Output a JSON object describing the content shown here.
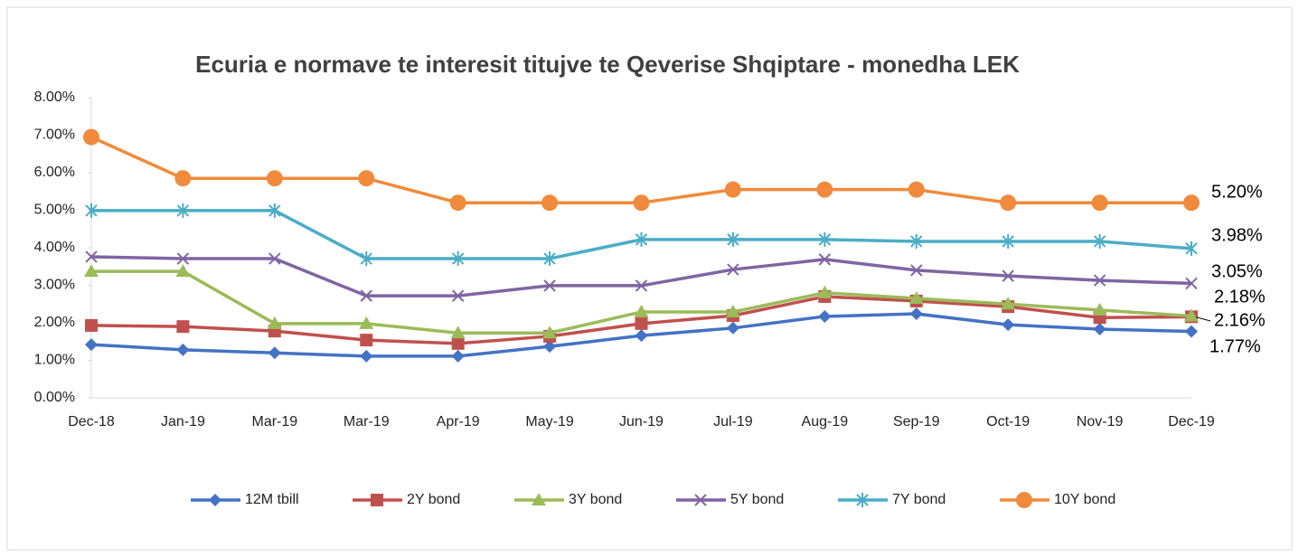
{
  "chart_data": {
    "type": "line",
    "title": "Ecuria e normave te interesit titujve te Qeverise Shqiptare - monedha LEK",
    "categories": [
      "Dec-18",
      "Jan-19",
      "Mar-19",
      "Mar-19",
      "Apr-19",
      "May-19",
      "Jun-19",
      "Jul-19",
      "Aug-19",
      "Sep-19",
      "Oct-19",
      "Nov-19",
      "Dec-19"
    ],
    "ylim": [
      0,
      8
    ],
    "yticks": [
      {
        "value": 0,
        "label": "0.00%"
      },
      {
        "value": 1,
        "label": "1.00%"
      },
      {
        "value": 2,
        "label": "2.00%"
      },
      {
        "value": 3,
        "label": "3.00%"
      },
      {
        "value": 4,
        "label": "4.00%"
      },
      {
        "value": 5,
        "label": "5.00%"
      },
      {
        "value": 6,
        "label": "6.00%"
      },
      {
        "value": 7,
        "label": "7.00%"
      },
      {
        "value": 8,
        "label": "8.00%"
      }
    ],
    "legend": "bottom",
    "series": [
      {
        "name": "12M tbill",
        "color": "#4472c4",
        "marker": "diamond",
        "values": [
          1.42,
          1.28,
          1.2,
          1.11,
          1.11,
          1.37,
          1.66,
          1.86,
          2.17,
          2.24,
          1.95,
          1.83,
          1.77
        ],
        "value_labels": [
          null,
          null,
          null,
          null,
          null,
          null,
          null,
          null,
          null,
          null,
          null,
          null,
          "1.77%"
        ]
      },
      {
        "name": "2Y bond",
        "color": "#c0504d",
        "marker": "square",
        "values": [
          1.93,
          1.9,
          1.78,
          1.54,
          1.45,
          1.64,
          1.98,
          2.19,
          2.7,
          2.58,
          2.43,
          2.14,
          2.16
        ],
        "value_labels": [
          null,
          null,
          null,
          null,
          null,
          null,
          null,
          null,
          null,
          null,
          null,
          null,
          "2.16%"
        ]
      },
      {
        "name": "3Y bond",
        "color": "#9bbb59",
        "marker": "triangle",
        "values": [
          3.37,
          3.37,
          1.98,
          1.98,
          1.73,
          1.73,
          2.29,
          2.29,
          2.8,
          2.65,
          2.5,
          2.34,
          2.18
        ],
        "value_labels": [
          null,
          null,
          null,
          null,
          null,
          null,
          null,
          null,
          null,
          null,
          null,
          null,
          "2.18%"
        ]
      },
      {
        "name": "5Y bond",
        "color": "#8064a2",
        "marker": "x",
        "values": [
          3.76,
          3.71,
          3.71,
          2.72,
          2.72,
          2.99,
          2.99,
          3.42,
          3.69,
          3.4,
          3.25,
          3.13,
          3.05
        ],
        "value_labels": [
          null,
          null,
          null,
          null,
          null,
          null,
          null,
          null,
          null,
          null,
          null,
          null,
          "3.05%"
        ]
      },
      {
        "name": "7Y bond",
        "color": "#4bacc6",
        "marker": "star",
        "values": [
          4.99,
          4.99,
          4.99,
          3.71,
          3.71,
          3.71,
          4.22,
          4.22,
          4.22,
          4.17,
          4.17,
          4.17,
          3.98
        ],
        "value_labels": [
          null,
          null,
          null,
          null,
          null,
          null,
          null,
          null,
          null,
          null,
          null,
          null,
          "3.98%"
        ]
      },
      {
        "name": "10Y bond",
        "color": "#f08a3c",
        "marker": "circle",
        "values": [
          6.95,
          5.85,
          5.85,
          5.85,
          5.2,
          5.2,
          5.2,
          5.55,
          5.55,
          5.55,
          5.2,
          5.2,
          5.2
        ],
        "value_labels": [
          null,
          null,
          null,
          null,
          null,
          null,
          null,
          null,
          null,
          null,
          null,
          null,
          "5.20%"
        ]
      }
    ]
  }
}
